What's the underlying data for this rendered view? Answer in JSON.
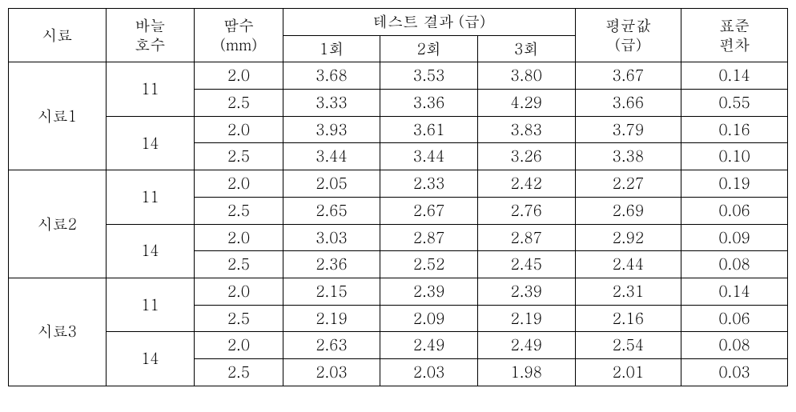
{
  "headers": {
    "sample": "시료",
    "needle": "바늘\n호수",
    "sweat": "땀수\n(mm)",
    "test_group": "테스트   결과 (급)",
    "test1": "1회",
    "test2": "2회",
    "test3": "3회",
    "avg": "평균값\n(급)",
    "std": "표준\n편차"
  },
  "samples": [
    {
      "name": "시료1",
      "needles": [
        {
          "num": "11",
          "rows": [
            {
              "sweat": "2.0",
              "t1": "3.68",
              "t2": "3.53",
              "t3": "3.80",
              "avg": "3.67",
              "std": "0.14"
            },
            {
              "sweat": "2.5",
              "t1": "3.33",
              "t2": "3.36",
              "t3": "4.29",
              "avg": "3.66",
              "std": "0.55"
            }
          ]
        },
        {
          "num": "14",
          "rows": [
            {
              "sweat": "2.0",
              "t1": "3.93",
              "t2": "3.61",
              "t3": "3.83",
              "avg": "3.79",
              "std": "0.16"
            },
            {
              "sweat": "2.5",
              "t1": "3.44",
              "t2": "3.44",
              "t3": "3.26",
              "avg": "3.38",
              "std": "0.10"
            }
          ]
        }
      ]
    },
    {
      "name": "시료2",
      "needles": [
        {
          "num": "11",
          "rows": [
            {
              "sweat": "2.0",
              "t1": "2.05",
              "t2": "2.33",
              "t3": "2.42",
              "avg": "2.27",
              "std": "0.19"
            },
            {
              "sweat": "2.5",
              "t1": "2.65",
              "t2": "2.67",
              "t3": "2.76",
              "avg": "2.69",
              "std": "0.06"
            }
          ]
        },
        {
          "num": "14",
          "rows": [
            {
              "sweat": "2.0",
              "t1": "3.03",
              "t2": "2.87",
              "t3": "2.87",
              "avg": "2.92",
              "std": "0.09"
            },
            {
              "sweat": "2.5",
              "t1": "2.36",
              "t2": "2.52",
              "t3": "2.45",
              "avg": "2.44",
              "std": "0.08"
            }
          ]
        }
      ]
    },
    {
      "name": "시료3",
      "needles": [
        {
          "num": "11",
          "rows": [
            {
              "sweat": "2.0",
              "t1": "2.15",
              "t2": "2.39",
              "t3": "2.39",
              "avg": "2.31",
              "std": "0.14"
            },
            {
              "sweat": "2.5",
              "t1": "2.19",
              "t2": "2.09",
              "t3": "2.19",
              "avg": "2.16",
              "std": "0.06"
            }
          ]
        },
        {
          "num": "14",
          "rows": [
            {
              "sweat": "2.0",
              "t1": "2.63",
              "t2": "2.49",
              "t3": "2.49",
              "avg": "2.54",
              "std": "0.08"
            },
            {
              "sweat": "2.5",
              "t1": "2.03",
              "t2": "2.03",
              "t3": "1.98",
              "avg": "2.01",
              "std": "0.03"
            }
          ]
        }
      ]
    }
  ]
}
